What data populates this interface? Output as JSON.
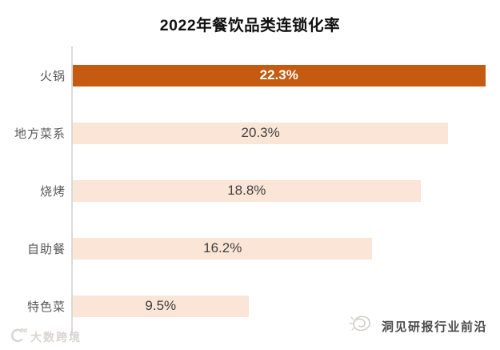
{
  "title": "2022年餐饮品类连锁化率",
  "chart_data": {
    "type": "bar",
    "orientation": "horizontal",
    "title": "2022年餐饮品类连锁化率",
    "categories": [
      "火锅",
      "地方菜系",
      "烧烤",
      "自助餐",
      "特色菜"
    ],
    "values": [
      22.3,
      20.3,
      18.8,
      16.2,
      9.5
    ],
    "value_labels": [
      "22.3%",
      "20.3%",
      "18.8%",
      "16.2%",
      "9.5%"
    ],
    "highlight_index": 0,
    "xlabel": "",
    "ylabel": "",
    "xlim": [
      0,
      23.1
    ],
    "grid": false,
    "legend": false,
    "value_label_position": "center-inside"
  },
  "colors": {
    "bar_highlight": "#C55A11",
    "bar_normal": "#FBE5D6",
    "value_on_highlight": "#FFFFFF",
    "value_on_normal": "#404040",
    "category_label": "#595959",
    "axis_line": "#D9D9D9",
    "title_text": "#111111"
  },
  "watermarks": {
    "bottom_left": {
      "logo_icon": "dashu-kuajing-logo",
      "text": "大数跨境"
    },
    "bottom_right": {
      "logo_icon": "scribble-doodle-logo",
      "text": "洞见研报行业前沿"
    }
  }
}
